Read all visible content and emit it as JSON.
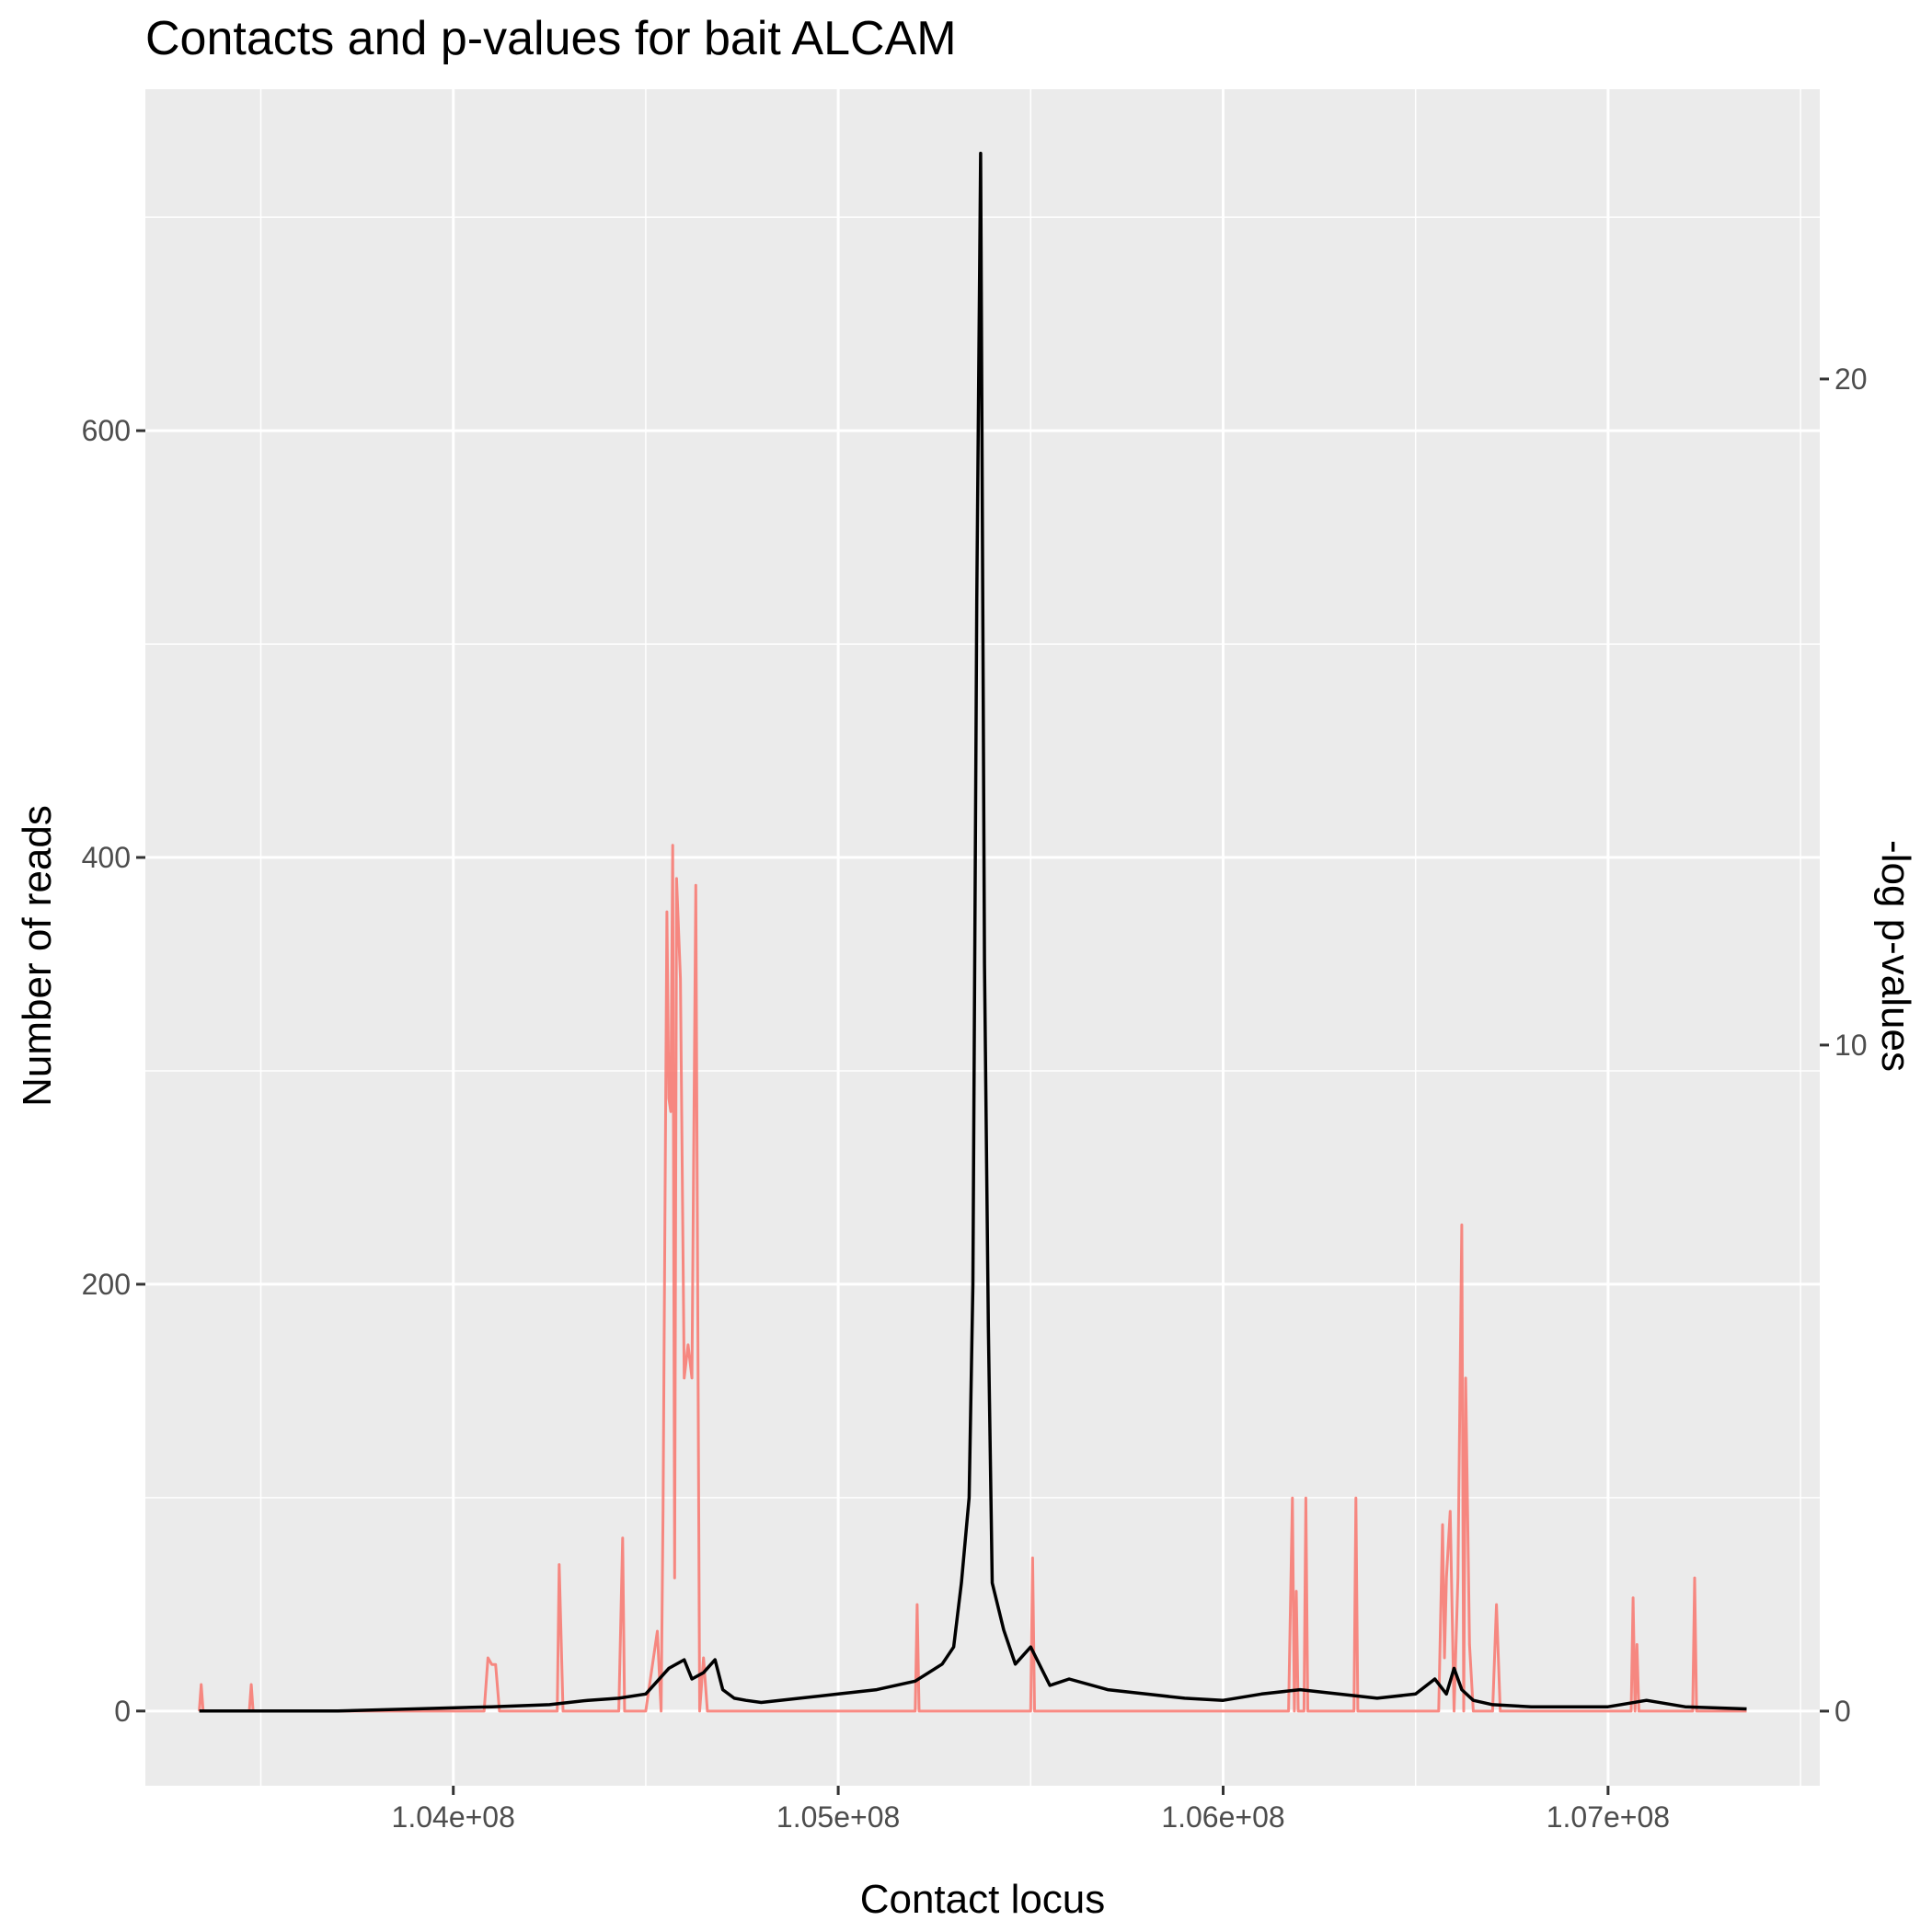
{
  "chart_data": {
    "type": "line",
    "title": "Contacts and p-values for bait ALCAM",
    "xlabel": "Contact locus",
    "ylabel": "Number of reads",
    "y2label": "-log p-values",
    "xlim": [
      103200000,
      107550000
    ],
    "ylim": [
      -35,
      760
    ],
    "y2lim": [
      -1.12,
      24.35
    ],
    "x_ticks": [
      104000000,
      105000000,
      106000000,
      107000000
    ],
    "x_tick_labels": [
      "1.04e+08",
      "1.05e+08",
      "1.06e+08",
      "1.07e+08"
    ],
    "y_ticks": [
      0,
      200,
      400,
      600
    ],
    "y_tick_labels": [
      "0",
      "200",
      "400",
      "600"
    ],
    "y2_ticks": [
      0,
      10,
      20
    ],
    "y2_tick_labels": [
      "0",
      "10",
      "20"
    ],
    "grid": true,
    "colors": {
      "panel": "#ebebeb",
      "grid": "#ffffff",
      "contacts": "#000000",
      "pvalues": "#f8766d"
    },
    "series": [
      {
        "axis": "left",
        "color": "#000000",
        "x": [
          103340000,
          103500000,
          103700000,
          103900000,
          104100000,
          104250000,
          104350000,
          104430000,
          104500000,
          104560000,
          104600000,
          104620000,
          104650000,
          104680000,
          104700000,
          104730000,
          104760000,
          104800000,
          104900000,
          105000000,
          105100000,
          105200000,
          105270000,
          105300000,
          105320000,
          105340000,
          105350000,
          105360000,
          105370000,
          105380000,
          105390000,
          105400000,
          105430000,
          105460000,
          105500000,
          105550000,
          105600000,
          105700000,
          105800000,
          105900000,
          106000000,
          106100000,
          106200000,
          106300000,
          106400000,
          106500000,
          106550000,
          106580000,
          106600000,
          106620000,
          106650000,
          106700000,
          106800000,
          107000000,
          107100000,
          107200000,
          107360000
        ],
        "values": [
          0,
          0,
          0,
          1,
          2,
          3,
          5,
          6,
          8,
          20,
          24,
          15,
          18,
          24,
          10,
          6,
          5,
          4,
          6,
          8,
          10,
          14,
          22,
          30,
          60,
          100,
          200,
          520,
          730,
          350,
          180,
          60,
          38,
          22,
          30,
          12,
          15,
          10,
          8,
          6,
          5,
          8,
          10,
          8,
          6,
          8,
          15,
          8,
          20,
          10,
          5,
          3,
          2,
          2,
          5,
          2,
          1
        ]
      },
      {
        "axis": "right",
        "color": "#f8766d",
        "x": [
          103340000,
          103345000,
          103350000,
          103470000,
          103475000,
          103480000,
          104080000,
          104090000,
          104100000,
          104110000,
          104120000,
          104270000,
          104275000,
          104285000,
          104430000,
          104440000,
          104445000,
          104500000,
          104530000,
          104540000,
          104545000,
          104555000,
          104560000,
          104565000,
          104570000,
          104575000,
          104580000,
          104590000,
          104600000,
          104610000,
          104620000,
          104630000,
          104640000,
          104650000,
          104660000,
          104670000,
          105200000,
          105205000,
          105210000,
          105400000,
          105405000,
          105410000,
          105500000,
          105505000,
          105510000,
          106170000,
          106180000,
          106185000,
          106190000,
          106195000,
          106205000,
          106210000,
          106215000,
          106220000,
          106230000,
          106340000,
          106345000,
          106350000,
          106560000,
          106570000,
          106575000,
          106580000,
          106590000,
          106600000,
          106610000,
          106620000,
          106625000,
          106630000,
          106640000,
          106650000,
          106660000,
          106670000,
          106700000,
          106710000,
          106720000,
          107060000,
          107065000,
          107070000,
          107075000,
          107080000,
          107090000,
          107220000,
          107225000,
          107230000,
          107360000
        ],
        "values": [
          0,
          0.4,
          0,
          0,
          0.4,
          0,
          0,
          0.8,
          0.7,
          0.7,
          0,
          0,
          2.2,
          0,
          0,
          2.6,
          0,
          0,
          1.2,
          0,
          3,
          12,
          9.2,
          9,
          13,
          2,
          12.5,
          11,
          5,
          5.5,
          5,
          12.4,
          0,
          0.8,
          0,
          0,
          0,
          1.6,
          0,
          0,
          0,
          0,
          0,
          2.3,
          0,
          0,
          3.2,
          0,
          1.8,
          0,
          0,
          0,
          3.2,
          0,
          0,
          0,
          3.2,
          0,
          0,
          2.8,
          0.8,
          2,
          3,
          0,
          2,
          7.3,
          0,
          5,
          1,
          0,
          0,
          0,
          0,
          1.6,
          0,
          0,
          1.7,
          0,
          1,
          0,
          0,
          0,
          2,
          0,
          0
        ]
      }
    ]
  }
}
